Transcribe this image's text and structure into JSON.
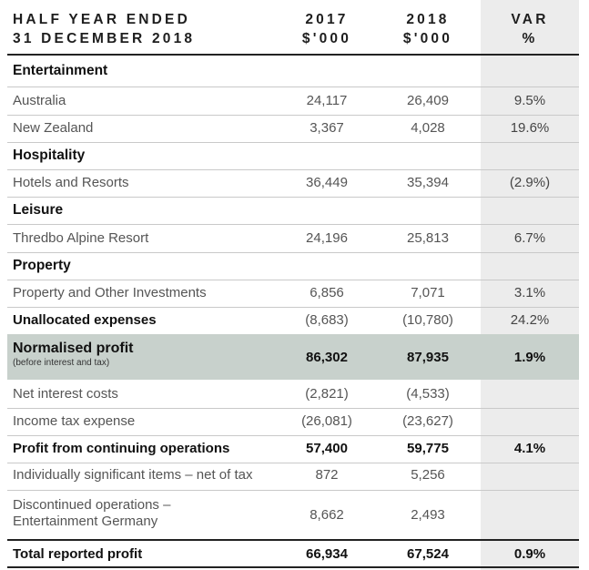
{
  "header": {
    "title_line1": "HALF YEAR ENDED",
    "title_line2": "31 DECEMBER 2018",
    "col2017_line1": "2017",
    "col2017_line2": "$'000",
    "col2018_line1": "2018",
    "col2018_line2": "$'000",
    "colvar_line1": "VAR",
    "colvar_line2": "%"
  },
  "sections": {
    "entertainment": "Entertainment",
    "hospitality": "Hospitality",
    "leisure": "Leisure",
    "property": "Property"
  },
  "rows": {
    "australia": {
      "label": "Australia",
      "v2017": "24,117",
      "v2018": "26,409",
      "var": "9.5%"
    },
    "new_zealand": {
      "label": "New Zealand",
      "v2017": "3,367",
      "v2018": "4,028",
      "var": "19.6%"
    },
    "hotels": {
      "label": "Hotels and Resorts",
      "v2017": "36,449",
      "v2018": "35,394",
      "var": "(2.9%)"
    },
    "thredbo": {
      "label": "Thredbo Alpine Resort",
      "v2017": "24,196",
      "v2018": "25,813",
      "var": "6.7%"
    },
    "property_inv": {
      "label": "Property and Other Investments",
      "v2017": "6,856",
      "v2018": "7,071",
      "var": "3.1%"
    },
    "unallocated": {
      "label": "Unallocated expenses",
      "v2017": "(8,683)",
      "v2018": "(10,780)",
      "var": "24.2%"
    },
    "normalised": {
      "label": "Normalised profit",
      "sublabel": "(before interest and tax)",
      "v2017": "86,302",
      "v2018": "87,935",
      "var": "1.9%"
    },
    "net_interest": {
      "label": "Net interest costs",
      "v2017": "(2,821)",
      "v2018": "(4,533)",
      "var": ""
    },
    "income_tax": {
      "label": "Income tax expense",
      "v2017": "(26,081)",
      "v2018": "(23,627)",
      "var": ""
    },
    "continuing": {
      "label": "Profit from continuing operations",
      "v2017": "57,400",
      "v2018": "59,775",
      "var": "4.1%"
    },
    "significant": {
      "label": "Individually significant items – net of tax",
      "v2017": "872",
      "v2018": "5,256",
      "var": ""
    },
    "discontinued": {
      "label_line1": "Discontinued operations –",
      "label_line2": "Entertainment Germany",
      "v2017": "8,662",
      "v2018": "2,493",
      "var": ""
    },
    "total": {
      "label": "Total reported profit",
      "v2017": "66,934",
      "v2018": "67,524",
      "var": "0.9%"
    }
  }
}
